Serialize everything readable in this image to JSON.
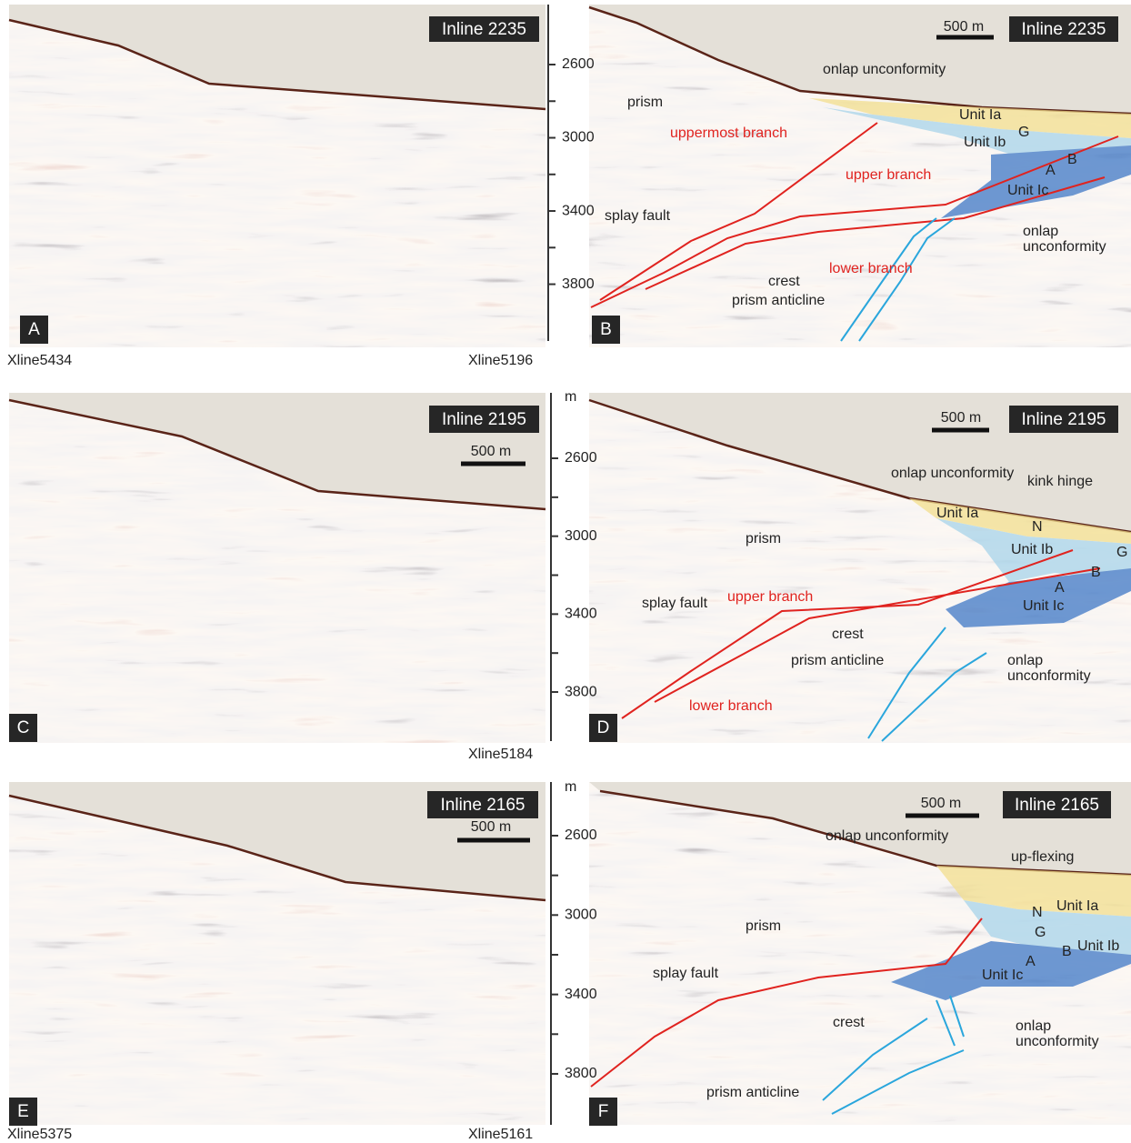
{
  "panels": [
    {
      "label": "A",
      "inline": "Inline 2235",
      "xline_left": "Xline5434",
      "xline_right": "Xline5196"
    },
    {
      "label": "B",
      "inline": "Inline 2235",
      "scale": "500 m",
      "annotations": [
        {
          "text": "onlap unconformity"
        },
        {
          "text": "prism"
        },
        {
          "text": "Unit Ia"
        },
        {
          "text": "G"
        },
        {
          "text": "Unit Ib"
        },
        {
          "text": "uppermost branch",
          "color": "#e0231f"
        },
        {
          "text": "B"
        },
        {
          "text": "upper branch",
          "color": "#e0231f"
        },
        {
          "text": "A"
        },
        {
          "text": "Unit Ic"
        },
        {
          "text": "splay fault"
        },
        {
          "text": "onlap"
        },
        {
          "text": "unconformity"
        },
        {
          "text": "lower branch",
          "color": "#e0231f"
        },
        {
          "text": "crest"
        },
        {
          "text": "prism anticline"
        }
      ]
    },
    {
      "label": "C",
      "inline": "Inline 2195",
      "scale": "500 m",
      "xline_right": "Xline5184"
    },
    {
      "label": "D",
      "inline": "Inline 2195",
      "scale": "500 m",
      "annotations": [
        {
          "text": "onlap unconformity"
        },
        {
          "text": "kink hinge"
        },
        {
          "text": "Unit Ia"
        },
        {
          "text": "N"
        },
        {
          "text": "G"
        },
        {
          "text": "prism"
        },
        {
          "text": "Unit Ib"
        },
        {
          "text": "B"
        },
        {
          "text": "A"
        },
        {
          "text": "splay fault"
        },
        {
          "text": "upper branch",
          "color": "#e0231f"
        },
        {
          "text": "Unit Ic"
        },
        {
          "text": "crest"
        },
        {
          "text": "prism anticline"
        },
        {
          "text": "onlap"
        },
        {
          "text": "unconformity"
        },
        {
          "text": "lower branch",
          "color": "#e0231f"
        }
      ]
    },
    {
      "label": "E",
      "inline": "Inline 2165",
      "scale": "500 m",
      "xline_left": "Xline5375",
      "xline_right": "Xline5161"
    },
    {
      "label": "F",
      "inline": "Inline 2165",
      "scale": "500 m",
      "annotations": [
        {
          "text": "onlap unconformity"
        },
        {
          "text": "up-flexing"
        },
        {
          "text": "Unit Ia"
        },
        {
          "text": "N"
        },
        {
          "text": "prism"
        },
        {
          "text": "G"
        },
        {
          "text": "Unit Ib"
        },
        {
          "text": "B"
        },
        {
          "text": "A"
        },
        {
          "text": "splay fault"
        },
        {
          "text": "Unit Ic"
        },
        {
          "text": "crest"
        },
        {
          "text": "onlap"
        },
        {
          "text": "unconformity"
        },
        {
          "text": "prism anticline"
        }
      ]
    }
  ],
  "depth_axes": [
    {
      "ticks": [
        2600,
        3000,
        3400,
        3800
      ]
    },
    {
      "unit": "m",
      "ticks": [
        2600,
        3000,
        3400,
        3800
      ]
    },
    {
      "unit": "m",
      "ticks": [
        2600,
        3000,
        3400,
        3800
      ]
    }
  ]
}
